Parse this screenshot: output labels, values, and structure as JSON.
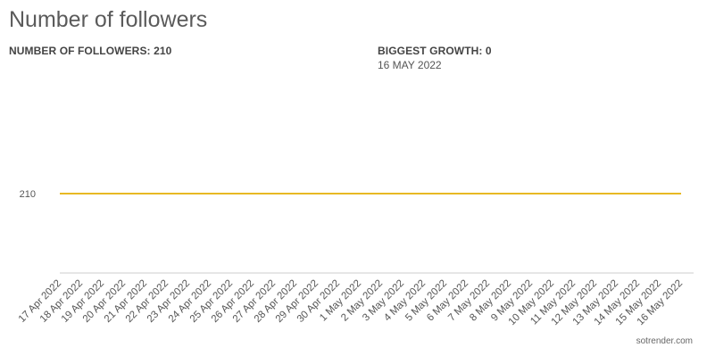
{
  "header": {
    "title": "Number of followers",
    "followers_label": "NUMBER OF FOLLOWERS: 210",
    "growth_label": "BIGGEST GROWTH: 0",
    "growth_date": "16 MAY 2022"
  },
  "footer": {
    "watermark": "sotrender.com"
  },
  "chart_data": {
    "type": "line",
    "categories": [
      "17 Apr 2022",
      "18 Apr 2022",
      "19 Apr 2022",
      "20 Apr 2022",
      "21 Apr 2022",
      "22 Apr 2022",
      "23 Apr 2022",
      "24 Apr 2022",
      "25 Apr 2022",
      "26 Apr 2022",
      "27 Apr 2022",
      "28 Apr 2022",
      "29 Apr 2022",
      "30 Apr 2022",
      "1 May 2022",
      "2 May 2022",
      "3 May 2022",
      "4 May 2022",
      "5 May 2022",
      "6 May 2022",
      "7 May 2022",
      "8 May 2022",
      "9 May 2022",
      "10 May 2022",
      "11 May 2022",
      "12 May 2022",
      "13 May 2022",
      "14 May 2022",
      "15 May 2022",
      "16 May 2022"
    ],
    "series": [
      {
        "values": [
          210,
          210,
          210,
          210,
          210,
          210,
          210,
          210,
          210,
          210,
          210,
          210,
          210,
          210,
          210,
          210,
          210,
          210,
          210,
          210,
          210,
          210,
          210,
          210,
          210,
          210,
          210,
          210,
          210,
          210
        ],
        "color": "#e8b923"
      }
    ],
    "yticks": [
      "210"
    ],
    "ylim": [
      208,
      212
    ],
    "grid": false,
    "axis_color": "#cccccc"
  }
}
